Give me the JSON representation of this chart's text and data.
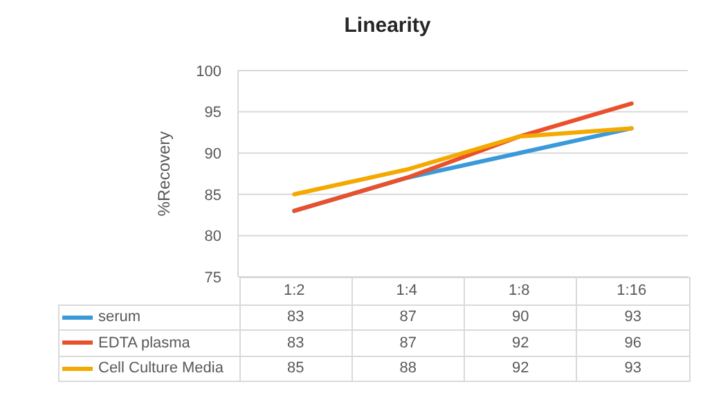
{
  "chart_data": {
    "type": "line",
    "title": "Linearity",
    "ylabel": "%Recovery",
    "categories": [
      "1:2",
      "1:4",
      "1:8",
      "1:16"
    ],
    "series": [
      {
        "name": "serum",
        "color": "#3a9ad9",
        "values": [
          83,
          87,
          90,
          93
        ]
      },
      {
        "name": "EDTA plasma",
        "color": "#e9502b",
        "values": [
          83,
          87,
          92,
          96
        ]
      },
      {
        "name": "Cell Culture Media",
        "color": "#f4a900",
        "values": [
          85,
          88,
          92,
          93
        ]
      }
    ],
    "ylim": [
      75,
      100
    ],
    "yticks": [
      75,
      80,
      85,
      90,
      95,
      100
    ],
    "grid": "y",
    "legend": "bottom",
    "data_labels": true
  }
}
